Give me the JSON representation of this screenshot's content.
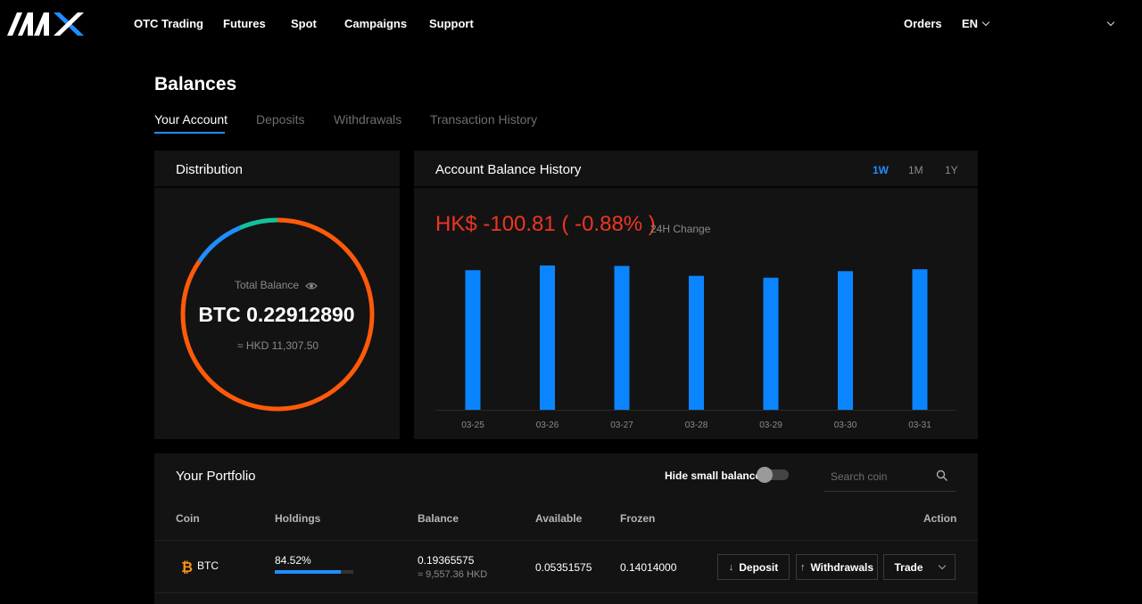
{
  "brand": {
    "logo": "AAX"
  },
  "nav": {
    "items": [
      {
        "label": "OTC Trading"
      },
      {
        "label": "Futures"
      },
      {
        "label": "Spot"
      },
      {
        "label": "Campaigns"
      },
      {
        "label": "Support"
      }
    ],
    "orders": "Orders",
    "language": "EN"
  },
  "page": {
    "title": "Balances",
    "tabs": [
      {
        "label": "Your Account",
        "active": true
      },
      {
        "label": "Deposits"
      },
      {
        "label": "Withdrawals"
      },
      {
        "label": "Transaction History"
      }
    ]
  },
  "distribution": {
    "title": "Distribution",
    "total_label": "Total Balance",
    "total_value": "BTC 0.22912890",
    "total_fiat": "≈ HKD 11,307.50",
    "eye_icon": "eye-icon",
    "segments": [
      {
        "fraction": 0.8452,
        "color": "#ff5a0a"
      },
      {
        "fraction": 0.09,
        "color": "#1f8fff"
      },
      {
        "fraction": 0.0648,
        "color": "#14c29a"
      }
    ]
  },
  "history": {
    "title": "Account Balance History",
    "ranges": [
      {
        "label": "1W",
        "active": true
      },
      {
        "label": "1M"
      },
      {
        "label": "1Y"
      }
    ],
    "change_value": "HK$ -100.81 ( -0.88% )",
    "change_label": "24H Change"
  },
  "chart_data": {
    "type": "bar",
    "categories": [
      "03-25",
      "03-26",
      "03-27",
      "03-28",
      "03-29",
      "03-30",
      "03-31"
    ],
    "values": [
      11480,
      11530,
      11525,
      11420,
      11400,
      11470,
      11490
    ],
    "ylim": [
      10000,
      11700
    ],
    "bar_color": "#0a85ff",
    "grid": false,
    "legend": "none"
  },
  "portfolio": {
    "title": "Your Portfolio",
    "hide_small_label": "Hide small balance",
    "hide_small_on": false,
    "search_placeholder": "Search coin",
    "columns": {
      "coin": "Coin",
      "holdings": "Holdings",
      "balance": "Balance",
      "available": "Available",
      "frozen": "Frozen",
      "action": "Action"
    },
    "rows": [
      {
        "coin": "BTC",
        "coin_icon": "bitcoin-icon",
        "holdings": "84.52%",
        "holdings_fraction": 0.8452,
        "balance": "0.19365575",
        "balance_fiat": "≈ 9,557.36 HKD",
        "available": "0.05351575",
        "frozen": "0.14014000",
        "actions": {
          "deposit": "Deposit",
          "withdrawals": "Withdrawals",
          "trade": "Trade"
        }
      }
    ]
  }
}
